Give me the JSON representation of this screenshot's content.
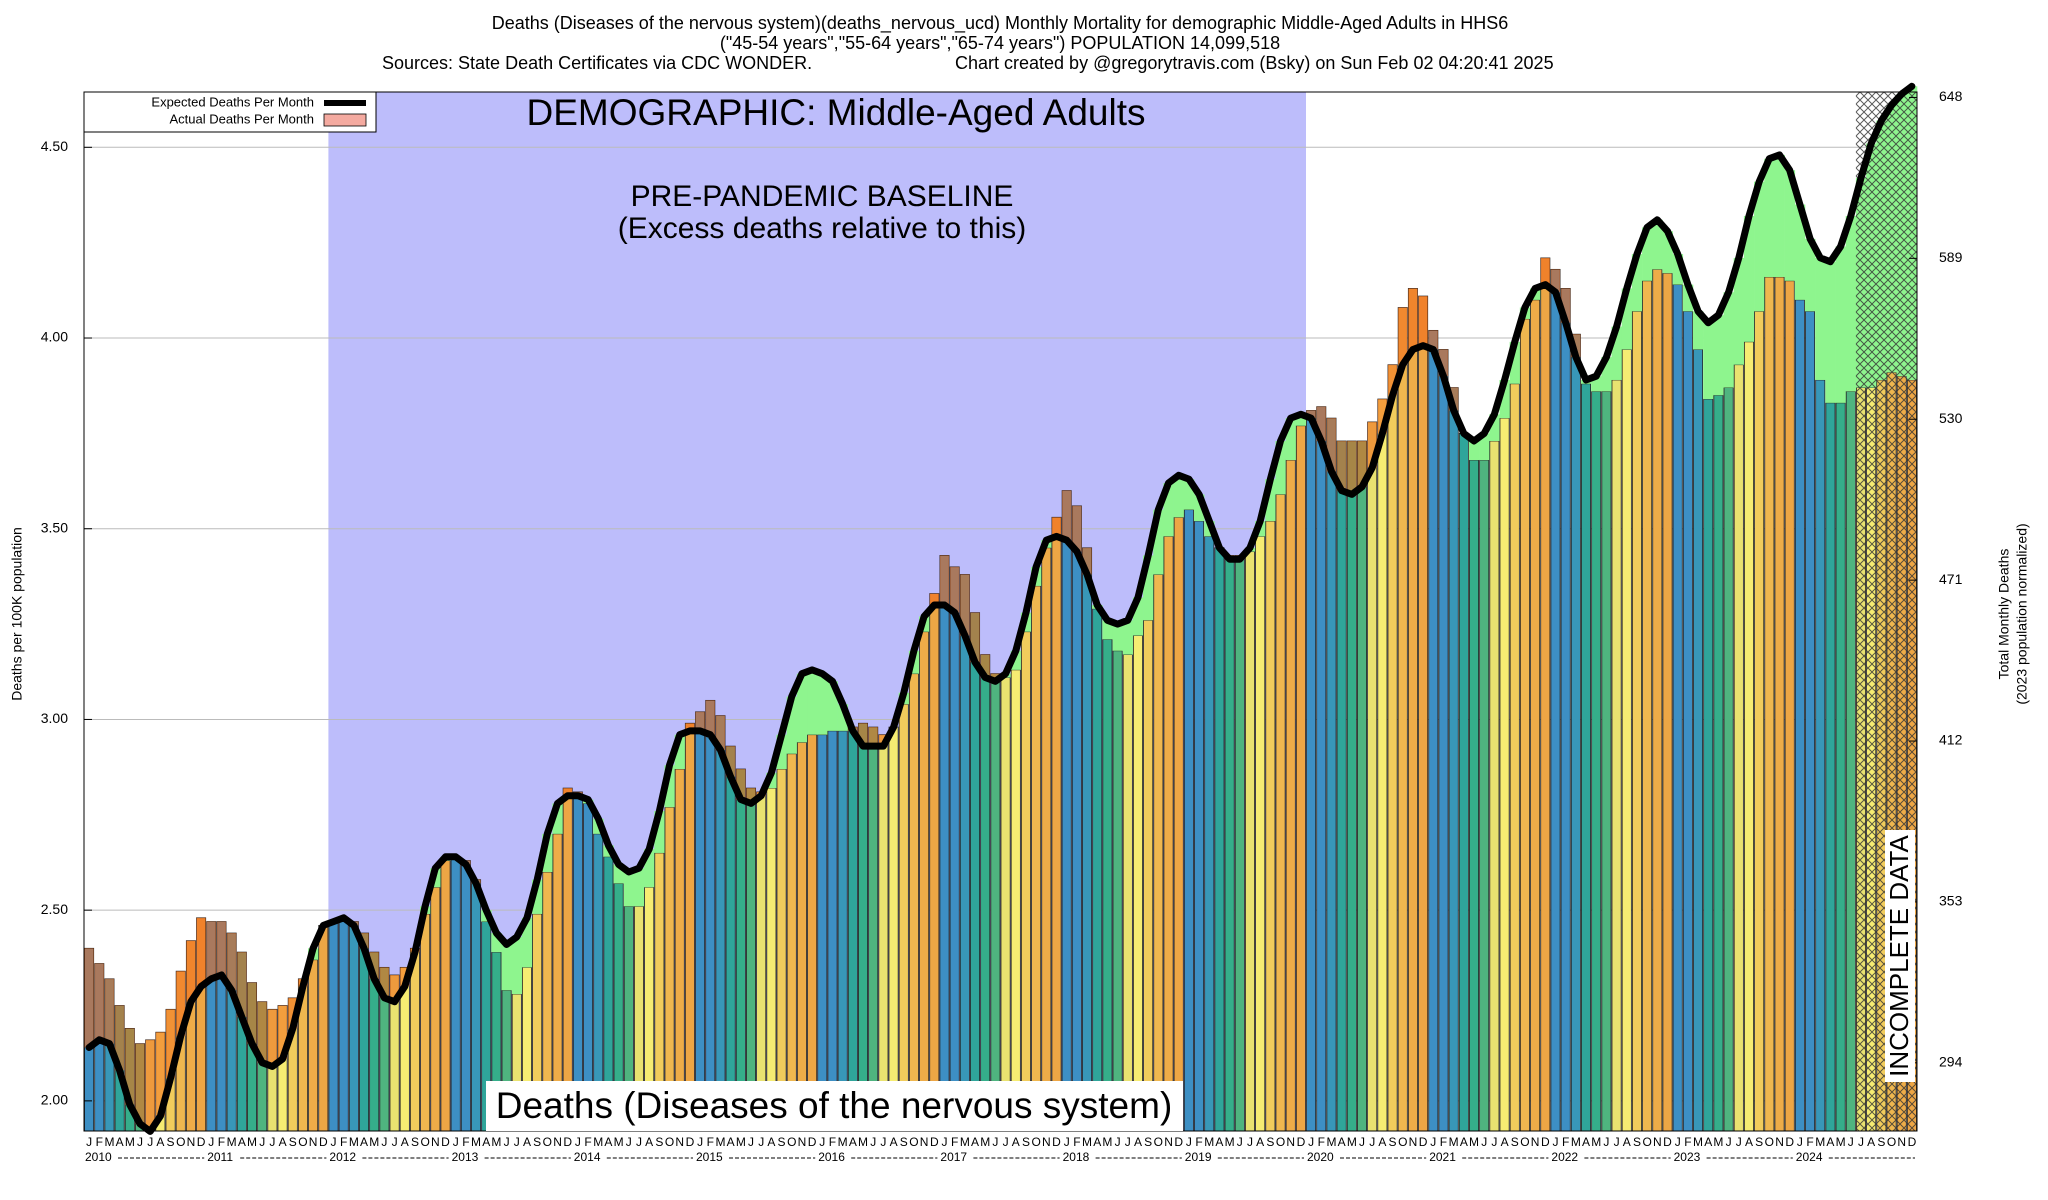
{
  "chart_data": {
    "type": "bar",
    "title": "Deaths (Diseases of the nervous system)(deaths_nervous_ucd) Monthly Mortality for demographic Middle-Aged Adults in HHS6",
    "subtitle": "(\"45-54 years\",\"55-64 years\",\"65-74 years\") POPULATION 14,099,518",
    "source": "Sources: State Death Certificates via CDC WONDER.",
    "credit": "Chart created by @gregorytravis.com (Bsky) on Sun Feb 02 04:20:41 2025",
    "demographic_label": "DEMOGRAPHIC: Middle-Aged Adults",
    "baseline_label": [
      "PRE-PANDEMIC BASELINE",
      "(Excess deaths relative to this)"
    ],
    "footer_label": "Deaths (Diseases of the nervous system)",
    "incomplete_label": "INCOMPLETE DATA",
    "ylabel": "Deaths per 100K population",
    "y2label": [
      "Total Monthly Deaths",
      "(2023 population normalized)"
    ],
    "categories": [
      "J",
      "F",
      "M",
      "A",
      "M",
      "J",
      "J",
      "A",
      "S",
      "O",
      "N",
      "D",
      "J",
      "F",
      "M",
      "A",
      "M",
      "J",
      "J",
      "A",
      "S",
      "O",
      "N",
      "D",
      "J",
      "F",
      "M",
      "A",
      "M",
      "J",
      "J",
      "A",
      "S",
      "O",
      "N",
      "D",
      "J",
      "F",
      "M",
      "A",
      "M",
      "J",
      "J",
      "A",
      "S",
      "O",
      "N",
      "D",
      "J",
      "F",
      "M",
      "A",
      "M",
      "J",
      "J",
      "A",
      "S",
      "O",
      "N",
      "D",
      "J",
      "F",
      "M",
      "A",
      "M",
      "J",
      "J",
      "A",
      "S",
      "O",
      "N",
      "D",
      "J",
      "F",
      "M",
      "A",
      "M",
      "J",
      "J",
      "A",
      "S",
      "O",
      "N",
      "D",
      "J",
      "F",
      "M",
      "A",
      "M",
      "J",
      "J",
      "A",
      "S",
      "O",
      "N",
      "D",
      "J",
      "F",
      "M",
      "A",
      "M",
      "J",
      "J",
      "A",
      "S",
      "O",
      "N",
      "D",
      "J",
      "F",
      "M",
      "A",
      "M",
      "J",
      "J",
      "A",
      "S",
      "O",
      "N",
      "D",
      "J",
      "F",
      "M",
      "A",
      "M",
      "J",
      "J",
      "A",
      "S",
      "O",
      "N",
      "D",
      "J",
      "F",
      "M",
      "A",
      "M",
      "J",
      "J",
      "A",
      "S",
      "O",
      "N",
      "D",
      "J",
      "F",
      "M",
      "A",
      "M",
      "J",
      "J",
      "A",
      "S",
      "O",
      "N",
      "D",
      "J",
      "F",
      "M",
      "A",
      "M",
      "J",
      "J",
      "A",
      "S",
      "O",
      "N",
      "D",
      "J",
      "F",
      "M",
      "A",
      "M",
      "J",
      "J",
      "A",
      "S",
      "O",
      "N",
      "D"
    ],
    "year_labels": [
      "2010",
      "2011",
      "2012",
      "2013",
      "2014",
      "2015",
      "2016",
      "2017",
      "2018",
      "2019",
      "2020",
      "2021",
      "2022",
      "2023",
      "2024"
    ],
    "series": [
      {
        "name": "Actual Deaths Per Month",
        "color": "#f4aaa0",
        "month_colors": [
          "#3d8fc4",
          "#3d8fc4",
          "#3897b8",
          "#2fa59a",
          "#35ae8a",
          "#4fb47f",
          "#e9e270",
          "#f6ec72",
          "#f1cc5c",
          "#efb74f",
          "#eeac48",
          "#eda645"
        ],
        "values": [
          2.4,
          2.36,
          2.32,
          2.25,
          2.19,
          2.15,
          2.16,
          2.18,
          2.24,
          2.34,
          2.42,
          2.48,
          2.47,
          2.47,
          2.44,
          2.39,
          2.31,
          2.26,
          2.24,
          2.25,
          2.27,
          2.32,
          2.37,
          2.46,
          2.47,
          2.48,
          2.47,
          2.44,
          2.39,
          2.35,
          2.33,
          2.35,
          2.4,
          2.49,
          2.56,
          2.63,
          2.64,
          2.63,
          2.58,
          2.47,
          2.39,
          2.29,
          2.28,
          2.35,
          2.49,
          2.6,
          2.7,
          2.82,
          2.81,
          2.78,
          2.7,
          2.64,
          2.57,
          2.51,
          2.51,
          2.56,
          2.65,
          2.77,
          2.87,
          2.99,
          3.02,
          3.05,
          3.01,
          2.93,
          2.87,
          2.82,
          2.81,
          2.82,
          2.87,
          2.91,
          2.94,
          2.96,
          2.96,
          2.97,
          2.97,
          2.98,
          2.99,
          2.98,
          2.96,
          2.98,
          3.04,
          3.12,
          3.23,
          3.33,
          3.43,
          3.4,
          3.38,
          3.28,
          3.17,
          3.12,
          3.11,
          3.13,
          3.23,
          3.35,
          3.45,
          3.53,
          3.6,
          3.56,
          3.45,
          3.29,
          3.21,
          3.18,
          3.17,
          3.22,
          3.26,
          3.38,
          3.48,
          3.53,
          3.55,
          3.52,
          3.48,
          3.45,
          3.43,
          3.43,
          3.44,
          3.48,
          3.52,
          3.59,
          3.68,
          3.77,
          3.81,
          3.82,
          3.79,
          3.73,
          3.73,
          3.73,
          3.78,
          3.84,
          3.93,
          4.08,
          4.13,
          4.11,
          4.02,
          3.97,
          3.87,
          3.75,
          3.68,
          3.68,
          3.73,
          3.79,
          3.88,
          4.05,
          4.1,
          4.21,
          4.18,
          4.13,
          4.01,
          3.88,
          3.86,
          3.86,
          3.89,
          3.97,
          4.07,
          4.15,
          4.18,
          4.17,
          4.14,
          4.07,
          3.97,
          3.84,
          3.85,
          3.87,
          3.93,
          3.99,
          4.07,
          4.16,
          4.16,
          4.15,
          4.1,
          4.07,
          3.89,
          3.83,
          3.83,
          3.86,
          3.87,
          3.87,
          3.89,
          3.91,
          3.9,
          3.89
        ]
      },
      {
        "name": "Expected Deaths Per Month",
        "color": "#000000",
        "values": [
          2.14,
          2.16,
          2.15,
          2.08,
          1.99,
          1.94,
          1.92,
          1.96,
          2.06,
          2.17,
          2.26,
          2.3,
          2.32,
          2.33,
          2.29,
          2.22,
          2.15,
          2.1,
          2.09,
          2.11,
          2.19,
          2.3,
          2.4,
          2.46,
          2.47,
          2.48,
          2.46,
          2.4,
          2.32,
          2.27,
          2.26,
          2.3,
          2.39,
          2.51,
          2.61,
          2.64,
          2.64,
          2.62,
          2.57,
          2.5,
          2.44,
          2.41,
          2.43,
          2.48,
          2.58,
          2.7,
          2.78,
          2.8,
          2.8,
          2.79,
          2.74,
          2.67,
          2.62,
          2.6,
          2.61,
          2.66,
          2.76,
          2.88,
          2.96,
          2.97,
          2.97,
          2.96,
          2.92,
          2.85,
          2.79,
          2.78,
          2.8,
          2.86,
          2.96,
          3.06,
          3.12,
          3.13,
          3.12,
          3.1,
          3.04,
          2.97,
          2.93,
          2.93,
          2.93,
          2.98,
          3.07,
          3.18,
          3.27,
          3.3,
          3.3,
          3.28,
          3.22,
          3.15,
          3.11,
          3.1,
          3.12,
          3.18,
          3.28,
          3.4,
          3.47,
          3.48,
          3.47,
          3.44,
          3.38,
          3.3,
          3.26,
          3.25,
          3.26,
          3.32,
          3.43,
          3.55,
          3.62,
          3.64,
          3.63,
          3.59,
          3.52,
          3.45,
          3.42,
          3.42,
          3.45,
          3.52,
          3.63,
          3.73,
          3.79,
          3.8,
          3.79,
          3.73,
          3.65,
          3.6,
          3.59,
          3.61,
          3.66,
          3.75,
          3.85,
          3.93,
          3.97,
          3.98,
          3.97,
          3.9,
          3.81,
          3.75,
          3.73,
          3.75,
          3.8,
          3.89,
          3.99,
          4.08,
          4.13,
          4.14,
          4.12,
          4.04,
          3.95,
          3.89,
          3.9,
          3.95,
          4.03,
          4.13,
          4.22,
          4.29,
          4.31,
          4.28,
          4.22,
          4.14,
          4.07,
          4.04,
          4.06,
          4.12,
          4.21,
          4.32,
          4.41,
          4.47,
          4.48,
          4.44,
          4.35,
          4.26,
          4.21,
          4.2,
          4.24,
          4.32,
          4.42,
          4.51,
          4.57,
          4.61,
          4.64,
          4.66
        ]
      }
    ],
    "excess_color": "#f26a1b",
    "deficit_color": "#8ef58e",
    "baseline_region": [
      24,
      120
    ],
    "baseline_color": "#bdbdfb",
    "incomplete_region": [
      174,
      180
    ],
    "ylim": [
      1.921,
      4.645
    ],
    "yticks": [
      {
        "value": 2,
        "label": "2.00"
      },
      {
        "value": 2.5,
        "label": "2.50"
      },
      {
        "value": 3,
        "label": "3.00"
      },
      {
        "value": 3.5,
        "label": "3.50"
      },
      {
        "value": 4,
        "label": "4.00"
      },
      {
        "value": 4.5,
        "label": "4.50"
      }
    ],
    "y2lim": [
      269,
      650
    ],
    "y2ticks": [
      294,
      353,
      412,
      471,
      530,
      589,
      648
    ],
    "grid": true,
    "legend": "top-left"
  }
}
